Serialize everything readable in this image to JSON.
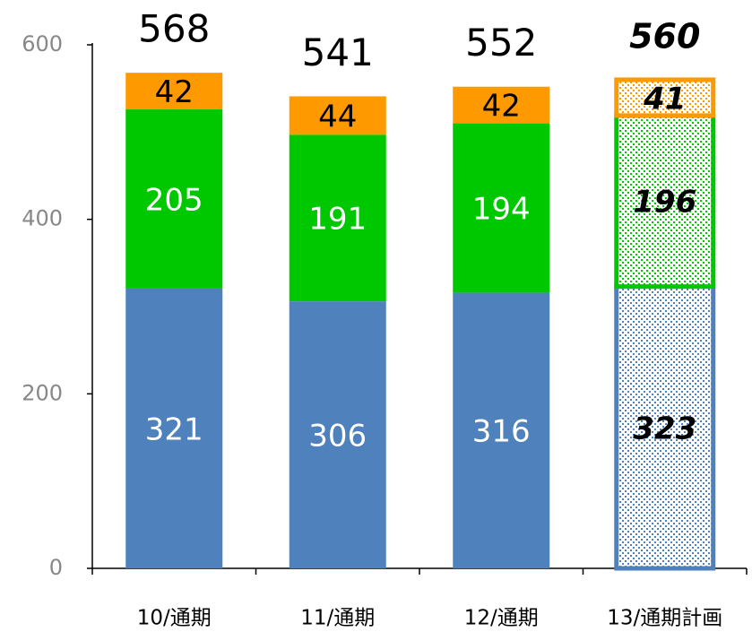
{
  "chart_data": {
    "type": "stacked_bar",
    "categories": [
      "10/通期",
      "11/通期",
      "12/通期",
      "13/通期計画"
    ],
    "series": [
      {
        "color": "#4f81bd",
        "values": [
          321,
          306,
          316,
          323
        ]
      },
      {
        "color": "#00c800",
        "values": [
          205,
          191,
          194,
          196
        ]
      },
      {
        "color": "#ff9900",
        "values": [
          42,
          44,
          42,
          41
        ]
      }
    ],
    "totals": [
      568,
      541,
      552,
      560
    ],
    "patterned": [
      false,
      false,
      false,
      true
    ],
    "ylim": [
      0,
      600
    ],
    "yticks": [
      0,
      200,
      400,
      600
    ],
    "grid": false
  }
}
